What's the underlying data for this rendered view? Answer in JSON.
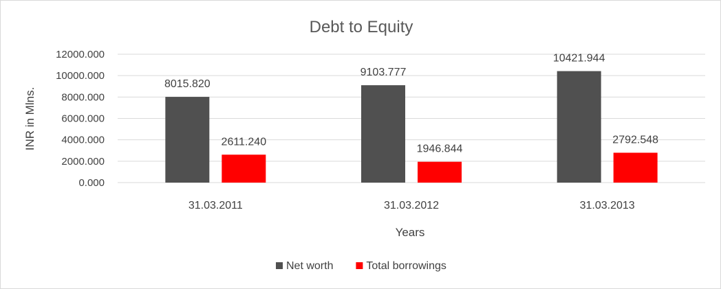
{
  "chart_data": {
    "type": "bar",
    "title": "Debt to Equity",
    "xlabel": "Years",
    "ylabel": "INR in Mlns.",
    "categories": [
      "31.03.2011",
      "31.03.2012",
      "31.03.2013"
    ],
    "ylim": [
      0,
      12000
    ],
    "yticks": [
      0,
      2000,
      4000,
      6000,
      8000,
      10000,
      12000
    ],
    "ytick_labels": [
      "0.000",
      "2000.000",
      "4000.000",
      "6000.000",
      "8000.000",
      "10000.000",
      "12000.000"
    ],
    "grid": true,
    "legend_position": "bottom",
    "series": [
      {
        "name": "Net worth",
        "color": "#505050",
        "values": [
          8015.82,
          9103.777,
          10421.944
        ],
        "labels": [
          "8015.820",
          "9103.777",
          "10421.944"
        ]
      },
      {
        "name": "Total borrowings",
        "color": "#ff0000",
        "values": [
          2611.24,
          1946.844,
          2792.548
        ],
        "labels": [
          "2611.240",
          "1946.844",
          "2792.548"
        ]
      }
    ]
  }
}
